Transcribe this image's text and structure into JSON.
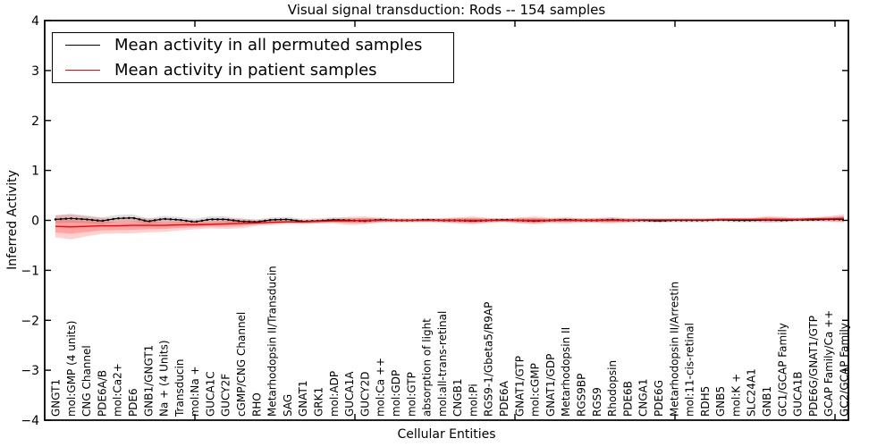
{
  "figure": {
    "title": "Visual signal transduction: Rods -- 154 samples",
    "xlabel": "Cellular Entities",
    "ylabel": "Inferred Activity"
  },
  "legend": {
    "entries": [
      {
        "label": "Mean activity in all permuted samples",
        "color": "#000000"
      },
      {
        "label": "Mean activity in patient samples",
        "color": "#ff0000"
      }
    ]
  },
  "chart_data": {
    "type": "line",
    "title": "Visual signal transduction: Rods -- 154 samples",
    "xlabel": "Cellular Entities",
    "ylabel": "Inferred Activity",
    "ylim": [
      -4,
      4
    ],
    "yticks": [
      4,
      3,
      2,
      1,
      0,
      -1,
      -2,
      -3,
      -4
    ],
    "grid": false,
    "legend_position": "upper left",
    "categories": [
      "GNGT1",
      "mol:GMP (4 units)",
      "CNG Channel",
      "PDE6A/B",
      "mol:Ca2+",
      "PDE6",
      "GNB1/GNGT1",
      "Na + (4 Units)",
      "Transducin",
      "mol:Na +",
      "GUCA1C",
      "GUCY2F",
      "cGMP/CNG Channel",
      "RHO",
      "Metarhodopsin II/Transducin",
      "SAG",
      "GNAT1",
      "GRK1",
      "mol:ADP",
      "GUCA1A",
      "GUCY2D",
      "mol:Ca ++",
      "mol:GDP",
      "mol:GTP",
      "absorption of light",
      "mol:all-trans-retinal",
      "CNGB1",
      "mol:Pi",
      "RGS9-1/Gbeta5/R9AP",
      "PDE6A",
      "GNAT1/GTP",
      "mol:cGMP",
      "GNAT1/GDP",
      "Metarhodopsin II",
      "RGS9BP",
      "RGS9",
      "Rhodopsin",
      "PDE6B",
      "CNGA1",
      "PDE6G",
      "Metarhodopsin II/Arrestin",
      "mol:11-cis-retinal",
      "RDH5",
      "GNB5",
      "mol:K +",
      "SLC24A1",
      "GNB1",
      "GC1/GCAP Family",
      "GUCA1B",
      "PDE6G/GNAT1/GTP",
      "GCAP Family/Ca ++",
      "GC2/GCAP Family"
    ],
    "series": [
      {
        "name": "Mean activity in all permuted samples",
        "color": "#000000",
        "band_color": "rgba(0,0,0,0.13)",
        "values": [
          0.02,
          0.04,
          0.02,
          -0.01,
          0.04,
          0.05,
          -0.02,
          0.03,
          0.01,
          -0.03,
          0.02,
          0.02,
          -0.02,
          -0.03,
          0.01,
          0.02,
          -0.02,
          -0.01,
          0.01,
          0.0,
          -0.01,
          0.01,
          0.0,
          0.0,
          0.01,
          0.0,
          0.0,
          -0.01,
          0.0,
          0.01,
          0.0,
          -0.01,
          0.0,
          0.01,
          0.0,
          0.0,
          0.01,
          0.0,
          0.0,
          -0.01,
          0.0,
          0.0,
          0.0,
          0.01,
          0.0,
          0.0,
          0.01,
          0.0,
          0.01,
          0.01,
          0.02,
          0.02
        ],
        "band_halfwidth": [
          0.08,
          0.09,
          0.08,
          0.07,
          0.07,
          0.07,
          0.06,
          0.06,
          0.06,
          0.06,
          0.06,
          0.06,
          0.05,
          0.05,
          0.05,
          0.05,
          0.05,
          0.05,
          0.05,
          0.05,
          0.05,
          0.05,
          0.04,
          0.04,
          0.04,
          0.04,
          0.05,
          0.05,
          0.04,
          0.04,
          0.05,
          0.05,
          0.04,
          0.04,
          0.04,
          0.04,
          0.05,
          0.04,
          0.04,
          0.04,
          0.04,
          0.04,
          0.04,
          0.04,
          0.04,
          0.04,
          0.05,
          0.04,
          0.04,
          0.04,
          0.05,
          0.05
        ]
      },
      {
        "name": "Mean activity in patient samples",
        "color": "#ff0000",
        "band_color": "rgba(255,0,0,0.18)",
        "values": [
          -0.12,
          -0.13,
          -0.12,
          -0.11,
          -0.11,
          -0.1,
          -0.1,
          -0.1,
          -0.09,
          -0.09,
          -0.08,
          -0.07,
          -0.06,
          -0.05,
          -0.04,
          -0.03,
          -0.03,
          -0.02,
          -0.01,
          -0.01,
          0.0,
          0.0,
          0.0,
          0.0,
          0.0,
          0.0,
          0.0,
          0.0,
          0.0,
          0.0,
          0.0,
          0.0,
          0.0,
          0.0,
          0.0,
          0.0,
          0.0,
          0.0,
          0.01,
          0.01,
          0.01,
          0.01,
          0.01,
          0.02,
          0.02,
          0.02,
          0.02,
          0.02,
          0.02,
          0.03,
          0.03,
          0.04
        ],
        "band_halfwidth": [
          0.22,
          0.25,
          0.2,
          0.16,
          0.15,
          0.16,
          0.14,
          0.13,
          0.11,
          0.09,
          0.08,
          0.1,
          0.1,
          0.06,
          0.05,
          0.04,
          0.04,
          0.04,
          0.05,
          0.08,
          0.08,
          0.04,
          0.03,
          0.03,
          0.03,
          0.04,
          0.06,
          0.08,
          0.05,
          0.03,
          0.06,
          0.08,
          0.05,
          0.06,
          0.04,
          0.05,
          0.06,
          0.04,
          0.02,
          0.02,
          0.02,
          0.02,
          0.02,
          0.02,
          0.03,
          0.03,
          0.06,
          0.05,
          0.03,
          0.03,
          0.05,
          0.08
        ]
      }
    ]
  }
}
